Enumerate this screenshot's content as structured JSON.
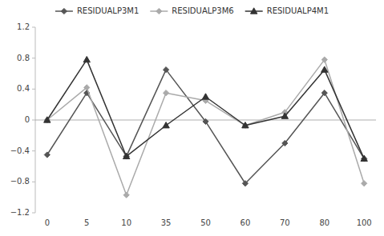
{
  "chart_data": {
    "type": "line",
    "categories": [
      "0",
      "5",
      "10",
      "35",
      "50",
      "60",
      "70",
      "80",
      "100"
    ],
    "series": [
      {
        "name": "RESIDUALP3M1",
        "color": "#555555",
        "marker": "diamond",
        "values": [
          -0.45,
          0.35,
          -0.47,
          0.65,
          -0.02,
          -0.82,
          -0.3,
          0.35,
          -0.5
        ]
      },
      {
        "name": "RESIDUALP3M6",
        "color": "#aaaaaa",
        "marker": "diamond",
        "values": [
          0.0,
          0.42,
          -0.97,
          0.35,
          0.25,
          -0.07,
          0.1,
          0.78,
          -0.82
        ]
      },
      {
        "name": "RESIDUALP4M1",
        "color": "#333333",
        "marker": "triangle",
        "values": [
          0.0,
          0.78,
          -0.47,
          -0.07,
          0.3,
          -0.07,
          0.05,
          0.65,
          -0.5
        ]
      }
    ],
    "ylim": [
      -1.2,
      1.2
    ],
    "yticks": [
      {
        "value": -1.2,
        "label": "−1.2"
      },
      {
        "value": -0.8,
        "label": "−0.8"
      },
      {
        "value": -0.4,
        "label": "−0.4"
      },
      0,
      0.4,
      0.8,
      1.2
    ],
    "legend": "top",
    "grid": false
  }
}
